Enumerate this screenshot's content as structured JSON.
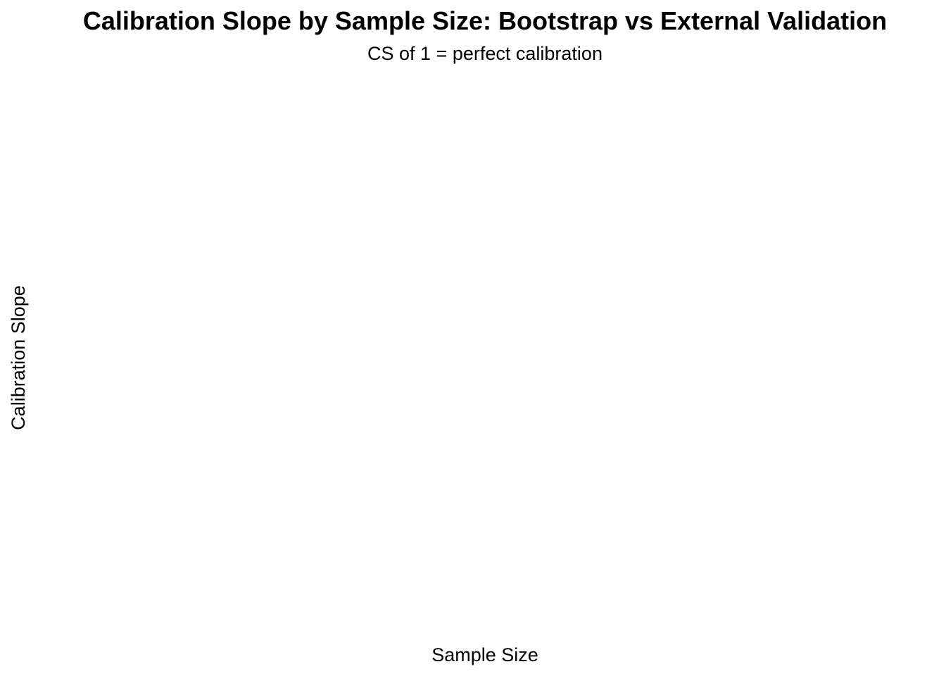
{
  "chart_data": {
    "type": "line",
    "title": "Calibration Slope by Sample Size: Bootstrap vs External Validation",
    "subtitle": "CS of 1 = perfect calibration",
    "xlabel": "Sample Size",
    "ylabel": "Calibration Slope",
    "series": [],
    "grid": false,
    "legend": "none"
  }
}
